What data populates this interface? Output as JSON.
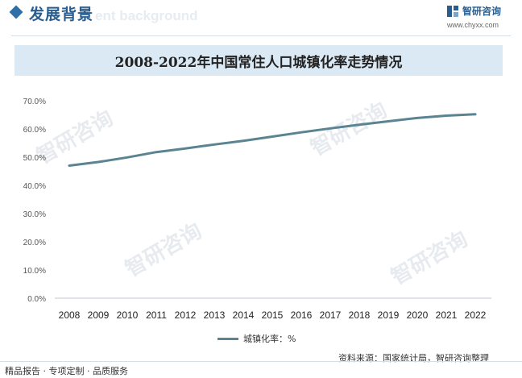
{
  "header": {
    "section_title": "发展背景",
    "section_title_en": "ent background",
    "brand_name": "智研咨询",
    "brand_url": "www.chyxx.com"
  },
  "footer": {
    "tagline": "精品报告 · 专项定制 · 品质服务",
    "source": "资料来源：国家统计局，智研咨询整理"
  },
  "colors": {
    "accent": "#2f6fa7",
    "title_band": "#dbe9f4",
    "line": "#5b8493"
  },
  "chart_data": {
    "type": "line",
    "title": "2008-2022年中国常住人口城镇化率走势情况",
    "xlabel": "",
    "ylabel": "",
    "categories": [
      "2008",
      "2009",
      "2010",
      "2011",
      "2012",
      "2013",
      "2014",
      "2015",
      "2016",
      "2017",
      "2018",
      "2019",
      "2020",
      "2021",
      "2022"
    ],
    "series": [
      {
        "name": "城镇化率：%",
        "values": [
          47.0,
          48.3,
          49.9,
          51.8,
          53.1,
          54.5,
          55.8,
          57.3,
          58.8,
          60.2,
          61.5,
          62.7,
          63.9,
          64.7,
          65.2
        ]
      }
    ],
    "y_ticks": [
      "0.0%",
      "10.0%",
      "20.0%",
      "30.0%",
      "40.0%",
      "50.0%",
      "60.0%",
      "70.0%"
    ],
    "ylim": [
      0,
      70
    ],
    "grid": false,
    "legend": "bottom"
  }
}
